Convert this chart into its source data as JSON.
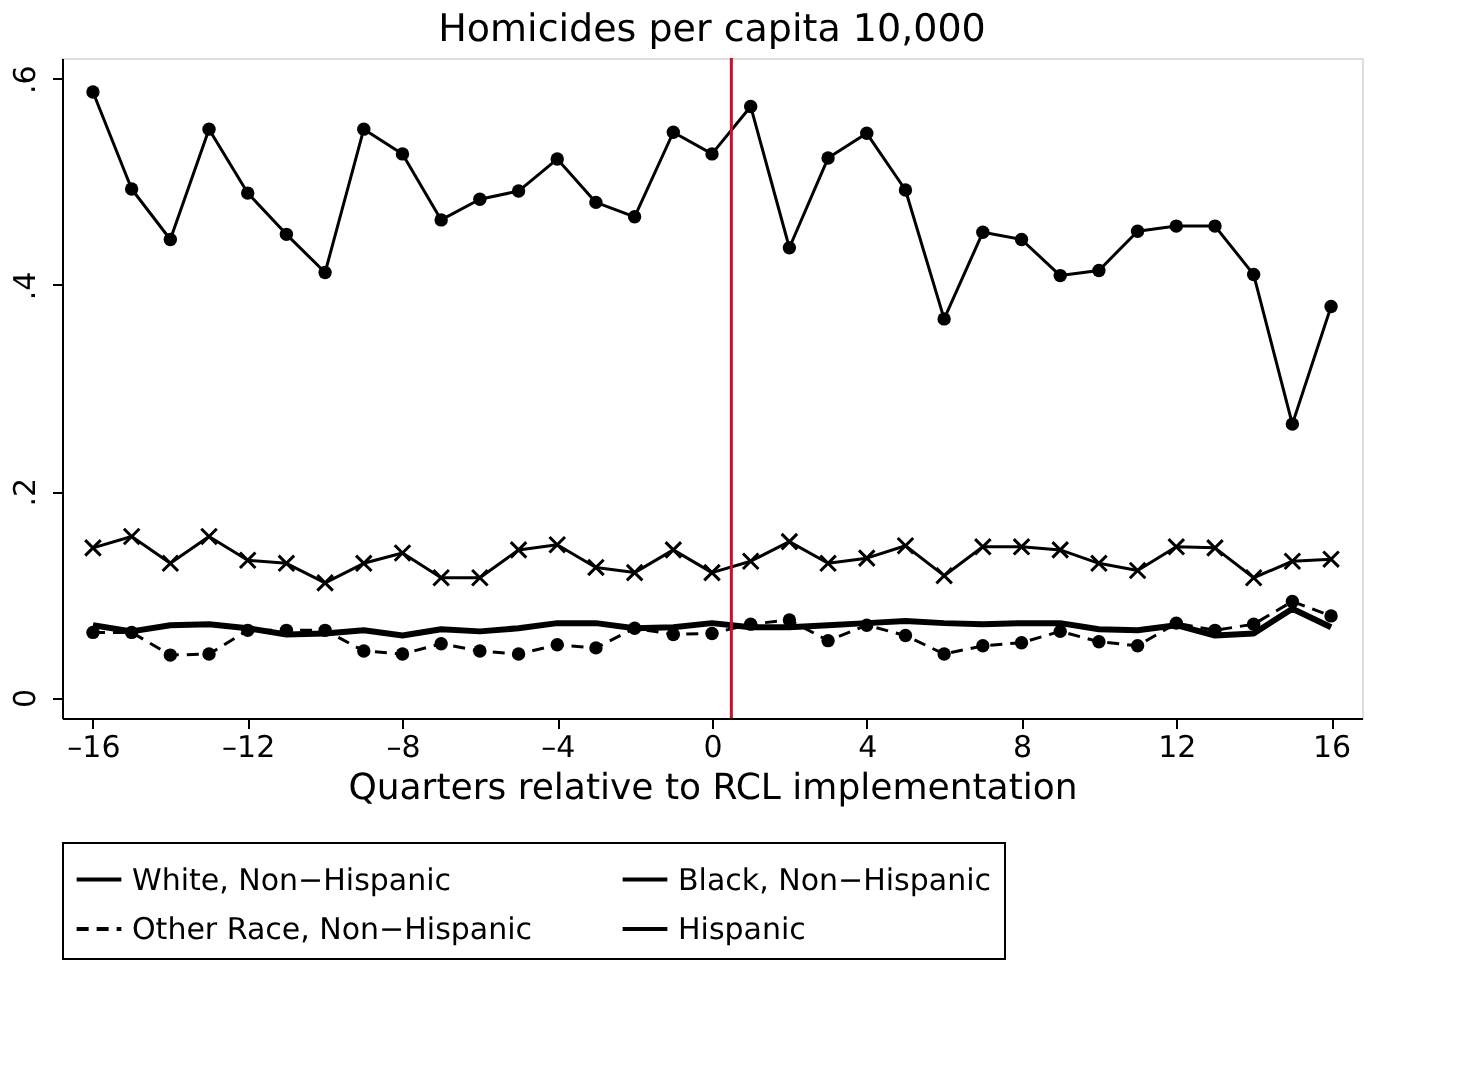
{
  "chart_data": {
    "type": "line",
    "title": "Homicides per capita 10,000",
    "xlabel": "Quarters relative to RCL implementation",
    "x": [
      -16,
      -15,
      -14,
      -13,
      -12,
      -11,
      -10,
      -9,
      -8,
      -7,
      -6,
      -5,
      -4,
      -3,
      -2,
      -1,
      0,
      1,
      2,
      3,
      4,
      5,
      6,
      7,
      8,
      9,
      10,
      11,
      12,
      13,
      14,
      15,
      16
    ],
    "series": [
      {
        "name": "White, Non−Hispanic",
        "color": "#000000",
        "marker": "none",
        "line_style": "solid",
        "values": [
          0.07,
          0.064,
          0.07,
          0.071,
          0.067,
          0.061,
          0.062,
          0.065,
          0.06,
          0.066,
          0.064,
          0.067,
          0.072,
          0.072,
          0.067,
          0.068,
          0.072,
          0.068,
          0.068,
          0.07,
          0.072,
          0.074,
          0.072,
          0.071,
          0.072,
          0.072,
          0.066,
          0.065,
          0.07,
          0.06,
          0.062,
          0.086,
          0.068
        ]
      },
      {
        "name": "Black, Non−Hispanic",
        "color": "#000000",
        "marker": "circle",
        "line_style": "solid",
        "values": [
          0.587,
          0.493,
          0.444,
          0.551,
          0.489,
          0.449,
          0.412,
          0.551,
          0.527,
          0.463,
          0.483,
          0.491,
          0.522,
          0.48,
          0.466,
          0.548,
          0.527,
          0.573,
          0.436,
          0.523,
          0.547,
          0.492,
          0.367,
          0.451,
          0.444,
          0.409,
          0.414,
          0.452,
          0.457,
          0.457,
          0.41,
          0.265,
          0.379
        ]
      },
      {
        "name": "Other Race, Non−Hispanic",
        "color": "#000000",
        "marker": "circle",
        "line_style": "dashed",
        "values": [
          0.063,
          0.063,
          0.041,
          0.042,
          0.065,
          0.065,
          0.065,
          0.045,
          0.042,
          0.052,
          0.045,
          0.042,
          0.051,
          0.048,
          0.067,
          0.061,
          0.062,
          0.071,
          0.075,
          0.055,
          0.07,
          0.06,
          0.042,
          0.05,
          0.053,
          0.064,
          0.054,
          0.05,
          0.072,
          0.065,
          0.071,
          0.093,
          0.079
        ]
      },
      {
        "name": "Hispanic",
        "color": "#000000",
        "marker": "cross",
        "line_style": "solid",
        "values": [
          0.145,
          0.156,
          0.13,
          0.156,
          0.133,
          0.13,
          0.111,
          0.13,
          0.14,
          0.116,
          0.116,
          0.143,
          0.148,
          0.126,
          0.121,
          0.143,
          0.121,
          0.132,
          0.151,
          0.13,
          0.135,
          0.147,
          0.118,
          0.146,
          0.146,
          0.143,
          0.13,
          0.123,
          0.146,
          0.145,
          0.116,
          0.132,
          0.134
        ]
      }
    ],
    "xlim": [
      -16.8,
      16.8
    ],
    "xticks": [
      {
        "value": -16,
        "label": "–16"
      },
      {
        "value": -12,
        "label": "–12"
      },
      {
        "value": -8,
        "label": "–8"
      },
      {
        "value": -4,
        "label": "–4"
      },
      0,
      4,
      8,
      12,
      16
    ],
    "ylim": [
      -0.02,
      0.62
    ],
    "yticks": [
      0,
      {
        "value": 0.2,
        "label": ".2"
      },
      {
        "value": 0.4,
        "label": ".4"
      },
      {
        "value": 0.6,
        "label": ".6"
      }
    ],
    "ref_lines": [
      {
        "axis": "x",
        "value": 0.5,
        "color": "#c8102e"
      }
    ],
    "grid": false,
    "legend": "bottom"
  }
}
